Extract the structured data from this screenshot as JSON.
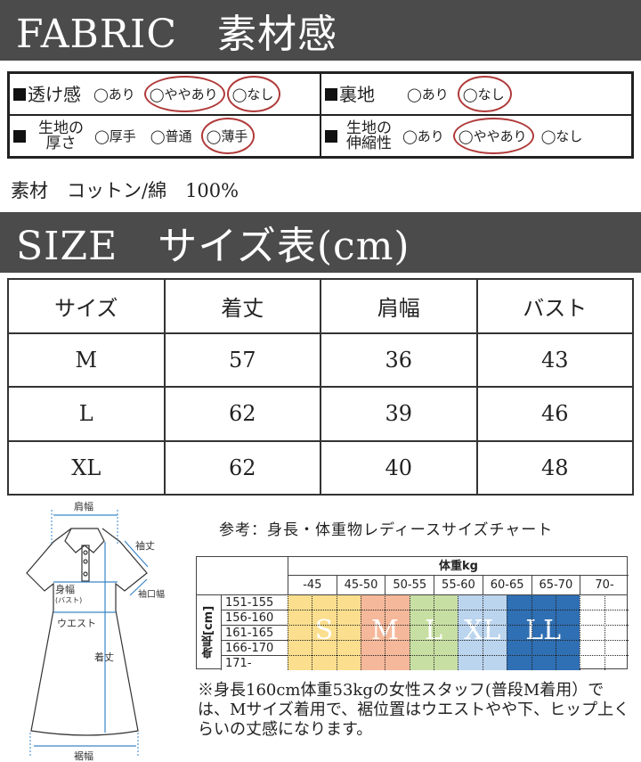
{
  "fabric_header": "FABRIC　素材感",
  "fabric": [
    {
      "label": "透け感",
      "options": [
        "◯あり",
        "◯ややあり",
        "◯なし"
      ],
      "selected": [
        1,
        2
      ]
    },
    {
      "label": "裏地",
      "options": [
        "◯あり",
        "◯なし"
      ],
      "selected": [
        1
      ]
    },
    {
      "label_lines": [
        "生地の",
        "厚さ"
      ],
      "options": [
        "◯厚手",
        "◯普通",
        "◯薄手"
      ],
      "selected": [
        2
      ]
    },
    {
      "label_lines": [
        "生地の",
        "伸縮性"
      ],
      "options": [
        "◯あり",
        "◯ややあり",
        "◯なし"
      ],
      "selected": [
        1
      ]
    }
  ],
  "material": "素材　コットン/綿　100%",
  "size_header": "SIZE　サイズ表(cm)",
  "size_table": {
    "headers": [
      "サイズ",
      "着丈",
      "肩幅",
      "バスト"
    ],
    "rows": [
      [
        "M",
        "57",
        "36",
        "43"
      ],
      [
        "L",
        "62",
        "39",
        "46"
      ],
      [
        "XL",
        "62",
        "40",
        "48"
      ]
    ]
  },
  "diagram": {
    "labels": {
      "shoulder": "肩幅",
      "sleeve": "袖丈",
      "cuff": "袖口幅",
      "bust": "身幅",
      "bust_sub": "(バスト)",
      "waist": "ウエスト",
      "length": "着丈",
      "hem": "裾幅"
    }
  },
  "chart": {
    "title": "参考：身長・体重物レディースサイズチャート",
    "weight_label": "体重kg",
    "height_label": "身長[cm]",
    "weights": [
      "-45",
      "45-50",
      "50-55",
      "55-60",
      "60-65",
      "65-70",
      "70-"
    ],
    "heights": [
      "151-155",
      "156-160",
      "161-165",
      "166-170",
      "171-"
    ],
    "sizes": [
      {
        "name": "S",
        "color": "#fbdf8e"
      },
      {
        "name": "M",
        "color": "#f6b89a"
      },
      {
        "name": "L",
        "color": "#c8dfa3"
      },
      {
        "name": "XL",
        "color": "#bcd5ef"
      },
      {
        "name": "LL",
        "color": "#2f6fb3"
      }
    ]
  },
  "note": "※身長160cm体重53kgの女性スタッフ(普段M着用）では、Mサイズ着用で、裾位置はウエストやや下、ヒップ上くらいの丈感になります。"
}
